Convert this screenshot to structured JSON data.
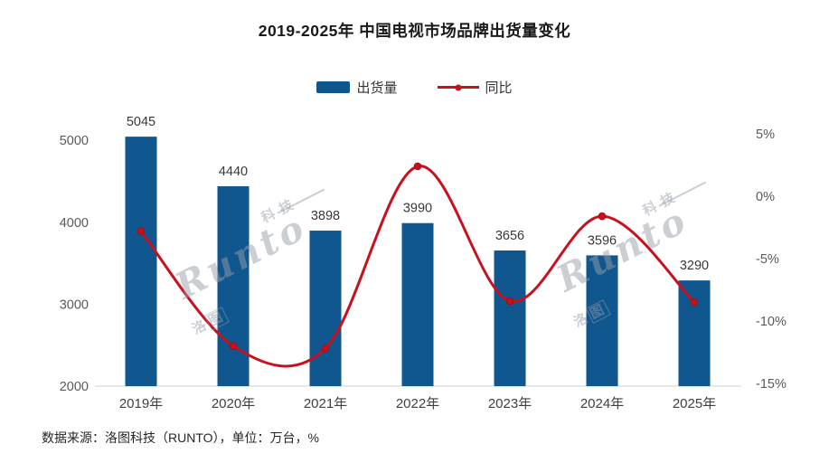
{
  "title": "2019-2025年 中国电视市场品牌出货量变化",
  "legend": {
    "items": [
      {
        "label": "出货量",
        "marker": "bar-swatch"
      },
      {
        "label": "同比",
        "marker": "line-swatch"
      }
    ]
  },
  "source_note": "数据来源：洛图科技（RUNTO），单位：万台，%",
  "watermark": {
    "brand": "Runto",
    "cn_top_right": "科技",
    "cn_bottom_left_1": "洛",
    "cn_bottom_left_2": "图"
  },
  "colors": {
    "bar": "#10578F",
    "line": "#C8101E",
    "title_text": "#1A1A1A",
    "axis_text": "#595959",
    "category_text": "#404040",
    "value_label_text": "#383838",
    "source_text": "#262626",
    "baseline": "#D9D9D9"
  },
  "chart_data": {
    "type": "bar",
    "subtype": "combo-bar-line-dual-axis",
    "title": "2019-2025年 中国电视市场品牌出货量变化",
    "categories": [
      "2019年",
      "2020年",
      "2021年",
      "2022年",
      "2023年",
      "2024年",
      "2025年"
    ],
    "series": [
      {
        "name": "出货量",
        "type": "bar",
        "axis": "left",
        "unit": "万台",
        "values": [
          5045,
          4440,
          3898,
          3990,
          3656,
          3596,
          3290
        ],
        "data_labels_shown": true
      },
      {
        "name": "同比",
        "type": "line",
        "axis": "right",
        "unit": "%",
        "smooth": true,
        "values": [
          -2.8,
          -12.0,
          -12.2,
          2.4,
          -8.4,
          -1.6,
          -8.5
        ],
        "data_labels_shown": false
      }
    ],
    "left_axis": {
      "ticks": [
        2000,
        3000,
        4000,
        5000
      ],
      "min": 2000,
      "max": 5300
    },
    "right_axis": {
      "ticks": [
        "5%",
        "0%",
        "-5%",
        "-10%",
        "-15%"
      ],
      "min_pct": -15,
      "max_pct": 5
    },
    "grid": false,
    "legend_position": "top-center",
    "xlabel": "",
    "ylabel": ""
  }
}
